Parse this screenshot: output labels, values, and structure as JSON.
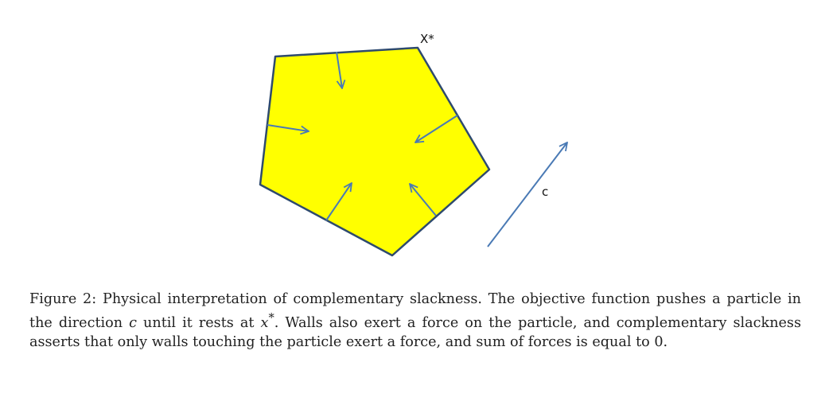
{
  "figure": {
    "optimum_label": "X*",
    "direction_label": "c",
    "colors": {
      "polygon_fill": "#ffff00",
      "polygon_edge": "#2e4a6e",
      "arrow": "#4a7ab5"
    }
  },
  "caption": {
    "number": "Figure 2:",
    "part1": "Physical interpretation of complementary slackness. The objective function pushes a particle in the direction",
    "var_c": "c",
    "part2": "until it rests at",
    "var_x": "x",
    "sup": "*",
    "part3": ". Walls also exert a force on the particle, and complementary slackness asserts that only walls touching the particle exert a force, and sum of forces is equal to 0."
  }
}
